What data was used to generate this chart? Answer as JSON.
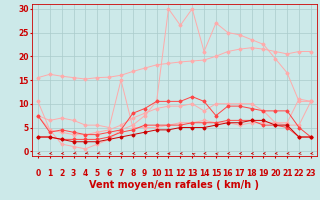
{
  "x": [
    0,
    1,
    2,
    3,
    4,
    5,
    6,
    7,
    8,
    9,
    10,
    11,
    12,
    13,
    14,
    15,
    16,
    17,
    18,
    19,
    20,
    21,
    22,
    23
  ],
  "bg_color": "#cce9e9",
  "grid_color": "#aacccc",
  "xlabel": "Vent moyen/en rafales ( km/h )",
  "xlabel_color": "#cc0000",
  "xlabel_fontsize": 7,
  "tick_color": "#cc0000",
  "tick_fontsize": 5.5,
  "ylim": [
    -1,
    31
  ],
  "xlim": [
    -0.5,
    23.5
  ],
  "yticks": [
    0,
    5,
    10,
    15,
    20,
    25,
    30
  ],
  "line1_color": "#ffaaaa",
  "line1_y": [
    15.5,
    16.2,
    15.8,
    15.5,
    15.2,
    15.5,
    15.6,
    16.0,
    16.8,
    17.5,
    18.2,
    18.5,
    18.8,
    19.0,
    19.2,
    20.0,
    21.0,
    21.5,
    21.8,
    21.5,
    21.0,
    20.5,
    21.0,
    21.0
  ],
  "line2_color": "#ffaaaa",
  "line2_y": [
    10.5,
    4.5,
    4.0,
    3.5,
    3.5,
    4.0,
    4.5,
    5.5,
    7.0,
    8.0,
    9.0,
    9.5,
    9.5,
    10.0,
    8.5,
    10.0,
    10.0,
    10.0,
    10.0,
    8.5,
    6.0,
    6.0,
    11.0,
    10.5
  ],
  "line3_color": "#ffaaaa",
  "line3_y": [
    7.5,
    6.5,
    7.0,
    6.5,
    5.5,
    5.5,
    5.0,
    15.0,
    5.0,
    5.0,
    5.0,
    5.5,
    6.0,
    6.0,
    6.5,
    6.0,
    6.0,
    5.5,
    6.0,
    6.0,
    6.0,
    5.5,
    5.5,
    10.5
  ],
  "line4_color": "#ff4444",
  "line4_y": [
    7.5,
    4.0,
    4.5,
    4.0,
    3.5,
    3.5,
    4.0,
    4.5,
    8.0,
    9.0,
    10.5,
    10.5,
    10.5,
    11.5,
    10.5,
    7.5,
    9.5,
    9.5,
    9.0,
    8.5,
    8.5,
    8.5,
    5.0,
    3.0
  ],
  "line5_color": "#ff4444",
  "line5_y": [
    3.0,
    3.0,
    2.5,
    2.5,
    2.5,
    2.5,
    3.0,
    4.0,
    4.5,
    5.5,
    5.5,
    5.5,
    5.5,
    6.0,
    6.0,
    6.0,
    6.5,
    6.5,
    6.5,
    5.5,
    5.5,
    5.0,
    3.0,
    3.0
  ],
  "line6_color": "#cc0000",
  "line6_y": [
    3.0,
    3.0,
    2.5,
    2.0,
    2.0,
    2.0,
    2.5,
    3.0,
    3.5,
    4.0,
    4.5,
    4.5,
    5.0,
    5.0,
    5.0,
    5.5,
    6.0,
    6.0,
    6.5,
    6.5,
    5.5,
    5.5,
    3.0,
    3.0
  ],
  "line7_color": "#ffaaaa",
  "line7_y": [
    7.5,
    4.5,
    1.5,
    1.0,
    0.5,
    1.5,
    2.5,
    4.5,
    5.5,
    7.5,
    10.5,
    30.0,
    26.5,
    30.0,
    21.0,
    27.0,
    25.0,
    24.5,
    23.5,
    22.5,
    19.5,
    16.5,
    10.5,
    10.5
  ],
  "arrow_color": "#cc0000"
}
